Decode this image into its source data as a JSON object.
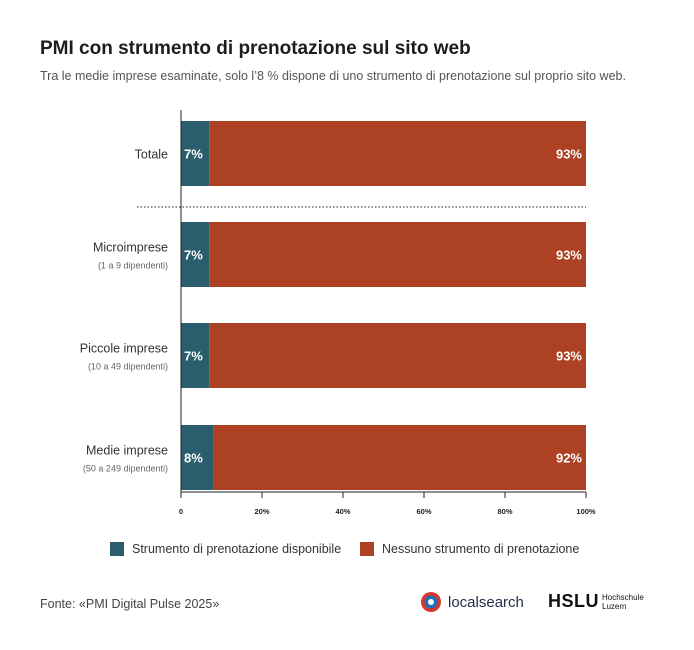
{
  "header": {
    "title": "PMI con strumento di prenotazione sul sito web",
    "subtitle": "Tra le medie imprese esaminate, solo l’8 % dispone di uno strumento di prenotazione sul proprio sito web."
  },
  "chart_data": {
    "type": "bar",
    "orientation": "horizontal",
    "stacked": true,
    "categories": [
      {
        "label": "Totale",
        "sublabel": ""
      },
      {
        "label": "Microimprese",
        "sublabel": "(1 a 9 dipendenti)"
      },
      {
        "label": "Piccole imprese",
        "sublabel": "(10 a 49 dipendenti)"
      },
      {
        "label": "Medie imprese",
        "sublabel": "(50 a 249 dipendenti)"
      }
    ],
    "series": [
      {
        "name": "Strumento di prenotazione disponibile",
        "color": "#2a5e6c",
        "values": [
          7,
          7,
          7,
          8
        ],
        "labels": [
          "7%",
          "7%",
          "7%",
          "8%"
        ]
      },
      {
        "name": "Nessuno strumento di prenotazione",
        "color": "#ad4124",
        "values": [
          93,
          93,
          93,
          92
        ],
        "labels": [
          "93%",
          "93%",
          "93%",
          "92%"
        ]
      }
    ],
    "xlim": [
      0,
      100
    ],
    "xticks": [
      0,
      20,
      40,
      60,
      80,
      100
    ],
    "xtick_labels": [
      "0",
      "20%",
      "40%",
      "60%",
      "80%",
      "100%"
    ],
    "grid": false,
    "legend_position": "bottom"
  },
  "footer": {
    "source": "Fonte: «PMI Digital Pulse 2025»",
    "logos": {
      "localsearch": "localsearch",
      "hslu_main": "HSLU",
      "hslu_sub1": "Hochschule",
      "hslu_sub2": "Luzern"
    }
  }
}
